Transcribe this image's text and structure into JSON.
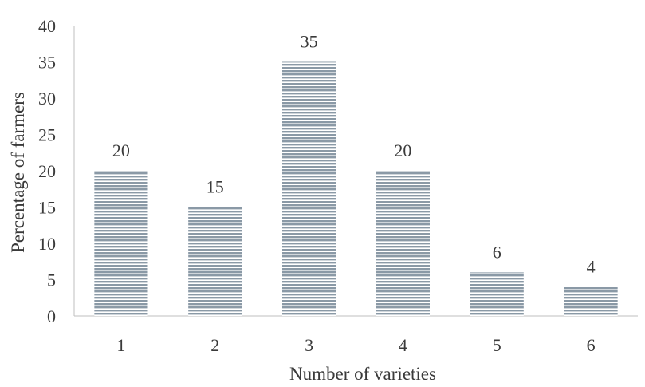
{
  "chart_data": {
    "type": "bar",
    "categories": [
      "1",
      "2",
      "3",
      "4",
      "5",
      "6"
    ],
    "values": [
      20,
      15,
      35,
      20,
      6,
      4
    ],
    "data_labels": [
      "20",
      "15",
      "35",
      "20",
      "6",
      "4"
    ],
    "title": "",
    "xlabel": "Number of varieties",
    "ylabel": "Percentage of farmers",
    "ylim": [
      0,
      40
    ],
    "yticks": [
      0,
      5,
      10,
      15,
      20,
      25,
      30,
      35,
      40
    ],
    "grid": false,
    "legend": "none",
    "bar_color": "#8a99a6",
    "bar_stripe_color": "#ffffff",
    "axis_color": "#bfbfbf"
  }
}
